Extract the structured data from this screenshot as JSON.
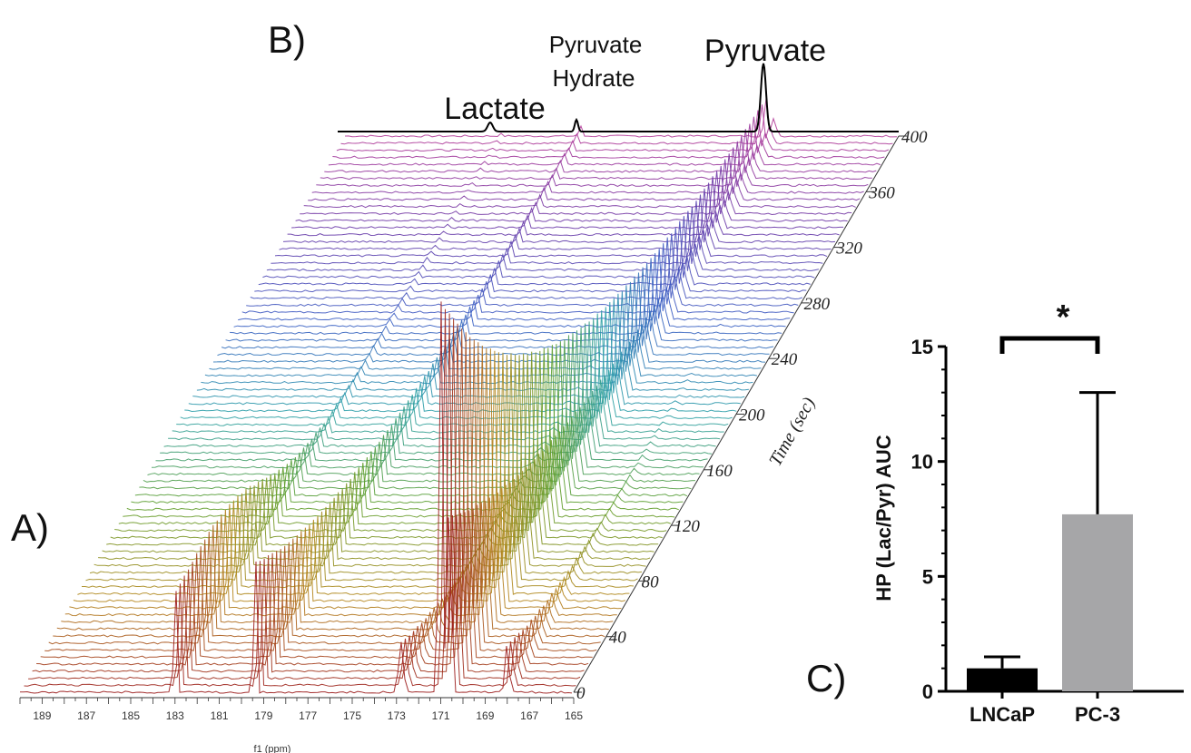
{
  "panel_labels": {
    "a": "A)",
    "b": "B)",
    "c": "C)"
  },
  "peaks": {
    "lactate": "Lactate",
    "pyruvate_hydrate_line1": "Pyruvate",
    "pyruvate_hydrate_line2": "Hydrate",
    "pyruvate": "Pyruvate"
  },
  "colors": {
    "time_gradient": [
      "#9b1b1b",
      "#b5861c",
      "#5f9e2a",
      "#2aa0a8",
      "#3a5ec4",
      "#6a3aa8",
      "#b23a98"
    ],
    "bar_lncap": "#000000",
    "bar_pc3": "#a6a6a8"
  },
  "chart_data": [
    {
      "type": "line",
      "description_axis": "stacked NMR spectra",
      "xlabel": "f1 (ppm)",
      "x_ticks": [
        "189",
        "187",
        "185",
        "183",
        "181",
        "179",
        "177",
        "175",
        "173",
        "171",
        "169",
        "167",
        "165"
      ],
      "xlim": [
        190,
        165
      ],
      "zlabel": "Time (sec)",
      "z_ticks": [
        "0",
        "40",
        "80",
        "120",
        "160",
        "200",
        "240",
        "280",
        "320",
        "360",
        "400"
      ],
      "zlim": [
        0,
        400
      ],
      "peaks_ppm": [
        {
          "ppm": 183.2,
          "name": "Lactate"
        },
        {
          "ppm": 179.4,
          "name": "Pyruvate Hydrate"
        },
        {
          "ppm": 171.0,
          "name": "Pyruvate"
        }
      ]
    },
    {
      "type": "bar",
      "categories": [
        "LNCaP",
        "PC-3"
      ],
      "values": [
        1.0,
        7.7
      ],
      "error_upper": [
        1.5,
        13.0
      ],
      "ylabel": "HP (Lac/Pyr) AUC",
      "ylim": [
        0,
        15
      ],
      "y_ticks": [
        "0",
        "5",
        "10",
        "15"
      ],
      "significance": "*"
    }
  ]
}
